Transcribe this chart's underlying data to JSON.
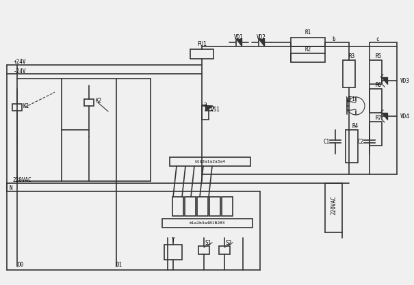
{
  "bg_color": "#f0f0f0",
  "line_color": "#333333",
  "line_width": 1.2,
  "thin_line": 0.8,
  "fig_width": 6.05,
  "fig_height": 4.17,
  "labels": {
    "plus24v": "+24V",
    "minus24v": "-24V",
    "220vac_top": "220VAC",
    "N": "N",
    "D0": "D0",
    "D1": "D1",
    "K1": "K1",
    "K2": "K2",
    "FU1": "FU1",
    "VD1": "VD1",
    "VD2": "VD2",
    "VS1": "VS1",
    "R1": "R1",
    "R2": "R2",
    "R3": "R3",
    "R4": "R4",
    "R5": "R5",
    "R6": "R6",
    "R7": "R7",
    "C1": "C1",
    "C2": "C2",
    "VT1": "VT1",
    "VD3": "VD3",
    "VD4": "VD4",
    "220vac_right": "220VAC",
    "b": "b",
    "c": "c",
    "a": "a",
    "terminal_top": "b1b3a1a2a3a4",
    "terminal_bot": "b1a2b3a4B1B2B3",
    "S1": "S1",
    "S2": "S2",
    "Y": "Y"
  },
  "font_size": 6.5,
  "small_font": 5.5
}
